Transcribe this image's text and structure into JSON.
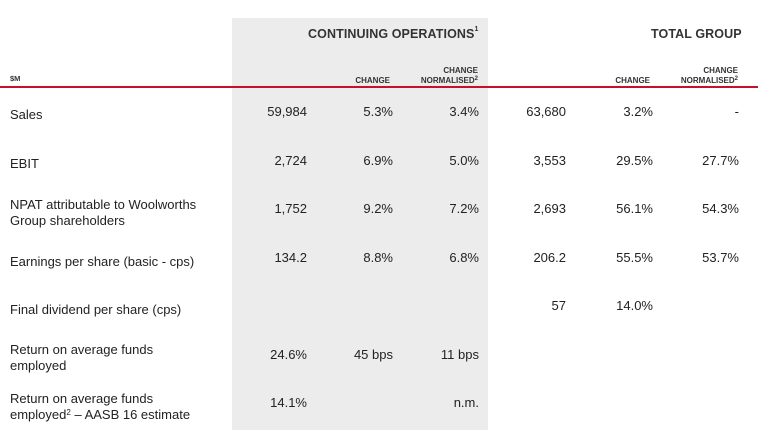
{
  "headers": {
    "unit": "$M",
    "continuing_title": "CONTINUING OPERATIONS",
    "continuing_sup": "1",
    "total_title": "TOTAL GROUP",
    "change": "CHANGE",
    "change_norm_1": "CHANGE",
    "change_norm_2": "NORMALISED",
    "norm_sup": "2"
  },
  "rows": [
    {
      "label": "Sales",
      "label_2": "",
      "label_sup": "",
      "label_2_rest": "",
      "cont_value": "59,984",
      "cont_change": "5.3%",
      "cont_norm": "3.4%",
      "total_value": "63,680",
      "total_change": "3.2%",
      "total_norm": "-"
    },
    {
      "label": "EBIT",
      "label_2": "",
      "label_sup": "",
      "label_2_rest": "",
      "cont_value": "2,724",
      "cont_change": "6.9%",
      "cont_norm": "5.0%",
      "total_value": "3,553",
      "total_change": "29.5%",
      "total_norm": "27.7%"
    },
    {
      "label": "NPAT attributable to Woolworths",
      "label_2": "Group shareholders",
      "label_sup": "",
      "label_2_rest": "",
      "cont_value": "1,752",
      "cont_change": "9.2%",
      "cont_norm": "7.2%",
      "total_value": "2,693",
      "total_change": "56.1%",
      "total_norm": "54.3%"
    },
    {
      "label": "Earnings per share (basic - cps)",
      "label_2": "",
      "label_sup": "",
      "label_2_rest": "",
      "cont_value": "134.2",
      "cont_change": "8.8%",
      "cont_norm": "6.8%",
      "total_value": "206.2",
      "total_change": "55.5%",
      "total_norm": "53.7%"
    },
    {
      "label": "Final dividend per share (cps)",
      "label_2": "",
      "label_sup": "",
      "label_2_rest": "",
      "cont_value": "",
      "cont_change": "",
      "cont_norm": "",
      "total_value": "57",
      "total_change": "14.0%",
      "total_norm": ""
    },
    {
      "label": "Return on average funds",
      "label_2": "employed",
      "label_sup": "",
      "label_2_rest": "",
      "cont_value": "24.6%",
      "cont_change": "45 bps",
      "cont_norm": "11 bps",
      "total_value": "",
      "total_change": "",
      "total_norm": ""
    },
    {
      "label": "Return on average funds",
      "label_2": "employed",
      "label_sup": "2",
      "label_2_rest": " – AASB 16 estimate",
      "cont_value": "14.1%",
      "cont_change": "",
      "cont_norm": "n.m.",
      "total_value": "",
      "total_change": "",
      "total_norm": ""
    }
  ]
}
